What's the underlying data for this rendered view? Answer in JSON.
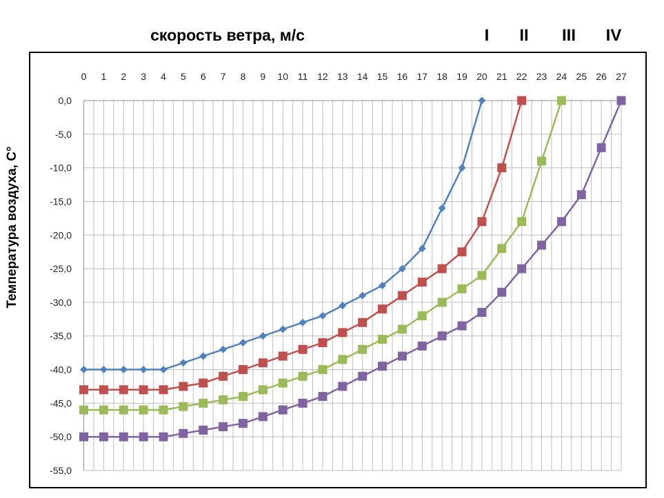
{
  "chart_data": {
    "type": "line",
    "xlabel": "скорость ветра, м/с",
    "ylabel": "Температура воздуха, С°",
    "x": [
      0,
      1,
      2,
      3,
      4,
      5,
      6,
      7,
      8,
      9,
      10,
      11,
      12,
      13,
      14,
      15,
      16,
      17,
      18,
      19,
      20,
      21,
      22,
      23,
      24,
      25,
      26,
      27
    ],
    "x_ticks": [
      "0",
      "1",
      "2",
      "3",
      "4",
      "5",
      "6",
      "7",
      "8",
      "9",
      "10",
      "11",
      "12",
      "13",
      "14",
      "15",
      "16",
      "17",
      "18",
      "19",
      "20",
      "21",
      "22",
      "23",
      "24",
      "25",
      "26",
      "27"
    ],
    "y_ticks": [
      "0,0",
      "-5,0",
      "-10,0",
      "-15,0",
      "-20,0",
      "-25,0",
      "-30,0",
      "-35,0",
      "-40,0",
      "-45,0",
      "-50,0",
      "-55,0"
    ],
    "xlim": [
      0,
      27
    ],
    "ylim": [
      -55,
      0
    ],
    "x_axis_position": "top",
    "grid": true,
    "series": [
      {
        "name": "I",
        "color": "#4f81bd",
        "marker": "diamond",
        "x": [
          0,
          1,
          2,
          3,
          4,
          5,
          6,
          7,
          8,
          9,
          10,
          11,
          12,
          13,
          14,
          15,
          16,
          17,
          18,
          19,
          20
        ],
        "y": [
          -40,
          -40,
          -40,
          -40,
          -40,
          -39,
          -38,
          -37,
          -36,
          -35,
          -34,
          -33,
          -32,
          -30.5,
          -29,
          -27.5,
          -25,
          -22,
          -16,
          -10,
          0
        ]
      },
      {
        "name": "II",
        "color": "#c0504d",
        "marker": "square",
        "x": [
          0,
          1,
          2,
          3,
          4,
          5,
          6,
          7,
          8,
          9,
          10,
          11,
          12,
          13,
          14,
          15,
          16,
          17,
          18,
          19,
          20,
          21,
          22
        ],
        "y": [
          -43,
          -43,
          -43,
          -43,
          -43,
          -42.5,
          -42,
          -41,
          -40,
          -39,
          -38,
          -37,
          -36,
          -34.5,
          -33,
          -31,
          -29,
          -27,
          -25,
          -22.5,
          -18,
          -10,
          0
        ]
      },
      {
        "name": "III",
        "color": "#9bbb59",
        "marker": "square",
        "x": [
          0,
          1,
          2,
          3,
          4,
          5,
          6,
          7,
          8,
          9,
          10,
          11,
          12,
          13,
          14,
          15,
          16,
          17,
          18,
          19,
          20,
          21,
          22,
          23,
          24
        ],
        "y": [
          -46,
          -46,
          -46,
          -46,
          -46,
          -45.5,
          -45,
          -44.5,
          -44,
          -43,
          -42,
          -41,
          -40,
          -38.5,
          -37,
          -35.5,
          -34,
          -32,
          -30,
          -28,
          -26,
          -22,
          -18,
          -9,
          0
        ]
      },
      {
        "name": "IV",
        "color": "#8064a2",
        "marker": "square",
        "x": [
          0,
          1,
          2,
          3,
          4,
          5,
          6,
          7,
          8,
          9,
          10,
          11,
          12,
          13,
          14,
          15,
          16,
          17,
          18,
          19,
          20,
          21,
          22,
          23,
          24,
          25,
          26,
          27
        ],
        "y": [
          -50,
          -50,
          -50,
          -50,
          -50,
          -49.5,
          -49,
          -48.5,
          -48,
          -47,
          -46,
          -45,
          -44,
          -42.5,
          -41,
          -39.5,
          -38,
          -36.5,
          -35,
          -33.5,
          -31.5,
          -28.5,
          -25,
          -21.5,
          -18,
          -14,
          -7,
          0
        ]
      }
    ]
  }
}
